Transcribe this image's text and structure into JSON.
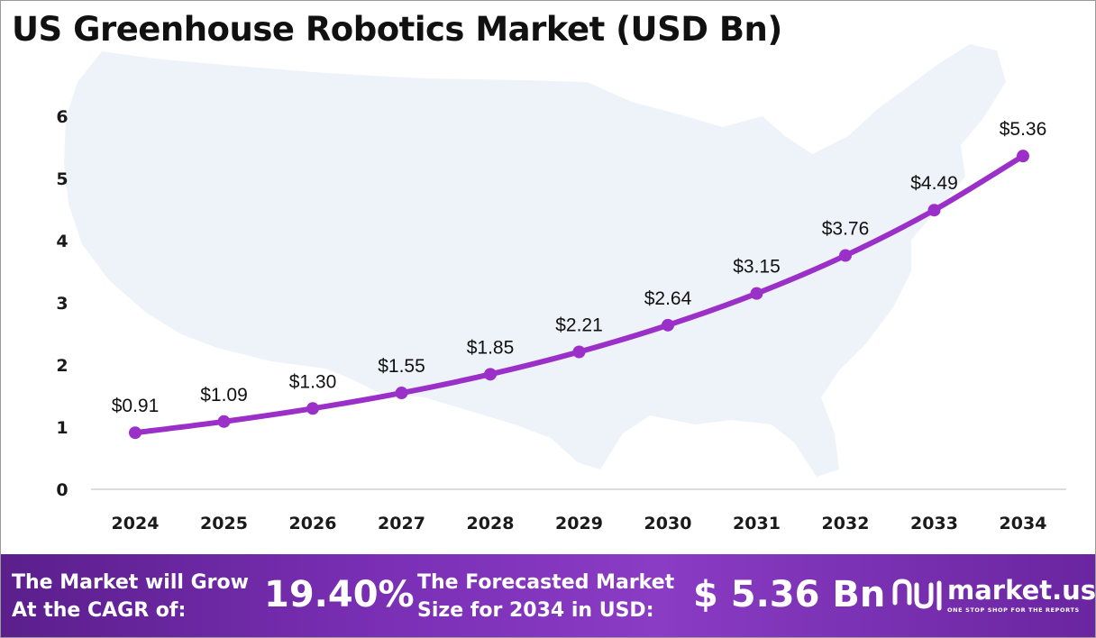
{
  "chart_data": {
    "type": "line",
    "title": "US Greenhouse Robotics Market (USD Bn)",
    "xlabel": "",
    "ylabel": "",
    "categories": [
      "2024",
      "2025",
      "2026",
      "2027",
      "2028",
      "2029",
      "2030",
      "2031",
      "2032",
      "2033",
      "2034"
    ],
    "values": [
      0.91,
      1.09,
      1.3,
      1.55,
      1.85,
      2.21,
      2.64,
      3.15,
      3.76,
      4.49,
      5.36
    ],
    "data_labels": [
      "$0.91",
      "$1.09",
      "$1.30",
      "$1.55",
      "$1.85",
      "$2.21",
      "$2.64",
      "$3.15",
      "$3.76",
      "$4.49",
      "$5.36"
    ],
    "y_ticks": [
      "0",
      "1",
      "2",
      "3",
      "4",
      "5",
      "6"
    ],
    "ylim": [
      0,
      6
    ],
    "grid": false,
    "legend": "none",
    "line_color": "#9b30c9",
    "background_map": "united-states-map"
  },
  "footer": {
    "cagr_label_line1": "The Market will Grow",
    "cagr_label_line2": "At the CAGR of:",
    "cagr_value": "19.40%",
    "forecast_label_line1": "The Forecasted Market",
    "forecast_label_line2": "Size for 2034 in USD:",
    "forecast_value": "$ 5.36 Bn",
    "brand_name": "market.us",
    "brand_tagline": "ONE STOP SHOP FOR THE REPORTS"
  },
  "colors": {
    "footer_start": "#5b1f8c",
    "footer_end": "#8a3cc4",
    "map_fill": "#eef2f9"
  }
}
